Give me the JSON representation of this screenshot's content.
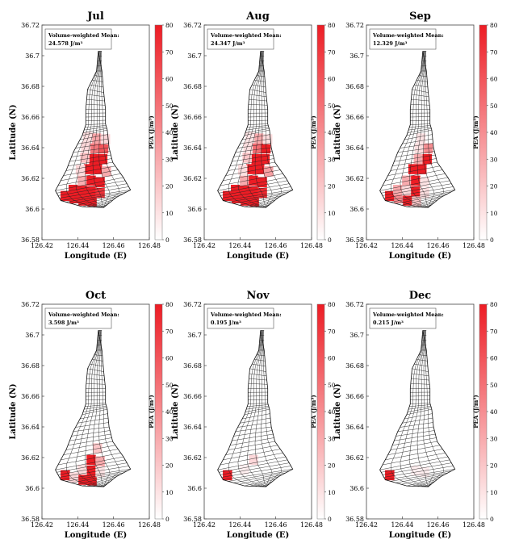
{
  "chart_data": [
    {
      "type": "heatmap",
      "title": "Jul",
      "mean_label": "Volume-weighted Mean:",
      "mean_value": "24.578 J/m³",
      "xlabel": "Longitude (E)",
      "ylabel": "Latitude (N)",
      "colorbar_label": "PEA (J/m³)",
      "xlim": [
        126.42,
        126.48
      ],
      "ylim": [
        36.58,
        36.72
      ],
      "clim": [
        0,
        80
      ],
      "xticks": [
        "126.42",
        "126.44",
        "126.46",
        "126.48"
      ],
      "yticks": [
        "36.58",
        "36.6",
        "36.62",
        "36.64",
        "36.66",
        "36.68",
        "36.7",
        "36.72"
      ],
      "cbar_ticks": [
        "0",
        "10",
        "20",
        "30",
        "40",
        "50",
        "60",
        "70",
        "80"
      ],
      "cells": [
        {
          "lon": 126.433,
          "lat": 36.6085,
          "v": 80
        },
        {
          "lon": 126.438,
          "lat": 36.607,
          "v": 80
        },
        {
          "lon": 126.443,
          "lat": 36.6055,
          "v": 80
        },
        {
          "lon": 126.448,
          "lat": 36.605,
          "v": 80
        },
        {
          "lon": 126.4375,
          "lat": 36.6125,
          "v": 80
        },
        {
          "lon": 126.4425,
          "lat": 36.612,
          "v": 80
        },
        {
          "lon": 126.4475,
          "lat": 36.6115,
          "v": 80
        },
        {
          "lon": 126.4525,
          "lat": 36.6105,
          "v": 72
        },
        {
          "lon": 126.4425,
          "lat": 36.6185,
          "v": 28
        },
        {
          "lon": 126.4475,
          "lat": 36.6185,
          "v": 80
        },
        {
          "lon": 126.4525,
          "lat": 36.6175,
          "v": 80
        },
        {
          "lon": 126.446,
          "lat": 36.626,
          "v": 80
        },
        {
          "lon": 126.451,
          "lat": 36.626,
          "v": 80
        },
        {
          "lon": 126.456,
          "lat": 36.6245,
          "v": 30
        },
        {
          "lon": 126.449,
          "lat": 36.6325,
          "v": 80
        },
        {
          "lon": 126.454,
          "lat": 36.6325,
          "v": 80
        },
        {
          "lon": 126.444,
          "lat": 36.6335,
          "v": 22
        },
        {
          "lon": 126.4495,
          "lat": 36.6395,
          "v": 48
        },
        {
          "lon": 126.4545,
          "lat": 36.6395,
          "v": 60
        },
        {
          "lon": 126.4445,
          "lat": 36.6405,
          "v": 14
        },
        {
          "lon": 126.4505,
          "lat": 36.646,
          "v": 32
        },
        {
          "lon": 126.4555,
          "lat": 36.6455,
          "v": 14
        },
        {
          "lon": 126.4455,
          "lat": 36.647,
          "v": 12
        },
        {
          "lon": 126.4415,
          "lat": 36.6255,
          "v": 14
        }
      ]
    },
    {
      "type": "heatmap",
      "title": "Aug",
      "mean_label": "Volume-weighted Mean:",
      "mean_value": "24.347 J/m³",
      "xlabel": "Longitude (E)",
      "ylabel": "Latitude (N)",
      "colorbar_label": "PEA (J/m³)",
      "xlim": [
        126.42,
        126.48
      ],
      "ylim": [
        36.58,
        36.72
      ],
      "clim": [
        0,
        80
      ],
      "xticks": [
        "126.42",
        "126.44",
        "126.46",
        "126.48"
      ],
      "yticks": [
        "36.58",
        "36.6",
        "36.62",
        "36.64",
        "36.66",
        "36.68",
        "36.7",
        "36.72"
      ],
      "cbar_ticks": [
        "0",
        "10",
        "20",
        "30",
        "40",
        "50",
        "60",
        "70",
        "80"
      ],
      "cells": [
        {
          "lon": 126.433,
          "lat": 36.6085,
          "v": 80
        },
        {
          "lon": 126.438,
          "lat": 36.607,
          "v": 80
        },
        {
          "lon": 126.443,
          "lat": 36.6055,
          "v": 80
        },
        {
          "lon": 126.448,
          "lat": 36.605,
          "v": 80
        },
        {
          "lon": 126.4375,
          "lat": 36.6125,
          "v": 80
        },
        {
          "lon": 126.4425,
          "lat": 36.612,
          "v": 80
        },
        {
          "lon": 126.4475,
          "lat": 36.6115,
          "v": 80
        },
        {
          "lon": 126.4525,
          "lat": 36.6105,
          "v": 76
        },
        {
          "lon": 126.4425,
          "lat": 36.6185,
          "v": 30
        },
        {
          "lon": 126.4475,
          "lat": 36.6185,
          "v": 80
        },
        {
          "lon": 126.4525,
          "lat": 36.6175,
          "v": 80
        },
        {
          "lon": 126.446,
          "lat": 36.626,
          "v": 80
        },
        {
          "lon": 126.451,
          "lat": 36.626,
          "v": 80
        },
        {
          "lon": 126.456,
          "lat": 36.6245,
          "v": 34
        },
        {
          "lon": 126.449,
          "lat": 36.6325,
          "v": 80
        },
        {
          "lon": 126.454,
          "lat": 36.6325,
          "v": 80
        },
        {
          "lon": 126.444,
          "lat": 36.6335,
          "v": 20
        },
        {
          "lon": 126.4495,
          "lat": 36.6395,
          "v": 52
        },
        {
          "lon": 126.4545,
          "lat": 36.6395,
          "v": 80
        },
        {
          "lon": 126.4445,
          "lat": 36.6405,
          "v": 12
        },
        {
          "lon": 126.4505,
          "lat": 36.646,
          "v": 30
        },
        {
          "lon": 126.4555,
          "lat": 36.6455,
          "v": 12
        },
        {
          "lon": 126.4455,
          "lat": 36.647,
          "v": 10
        },
        {
          "lon": 126.4415,
          "lat": 36.6255,
          "v": 12
        }
      ]
    },
    {
      "type": "heatmap",
      "title": "Sep",
      "mean_label": "Volume-weighted Mean:",
      "mean_value": "12.329 J/m³",
      "xlabel": "Longitude (E)",
      "ylabel": "Latitude (N)",
      "colorbar_label": "PEA (J/m³)",
      "xlim": [
        126.42,
        126.48
      ],
      "ylim": [
        36.58,
        36.72
      ],
      "clim": [
        0,
        80
      ],
      "xticks": [
        "126.42",
        "126.44",
        "126.46",
        "126.48"
      ],
      "yticks": [
        "36.58",
        "36.6",
        "36.62",
        "36.64",
        "36.66",
        "36.68",
        "36.7",
        "36.72"
      ],
      "cbar_ticks": [
        "0",
        "10",
        "20",
        "30",
        "40",
        "50",
        "60",
        "70",
        "80"
      ],
      "cells": [
        {
          "lon": 126.433,
          "lat": 36.6085,
          "v": 80
        },
        {
          "lon": 126.438,
          "lat": 36.607,
          "v": 40
        },
        {
          "lon": 126.443,
          "lat": 36.6055,
          "v": 80
        },
        {
          "lon": 126.448,
          "lat": 36.605,
          "v": 20
        },
        {
          "lon": 126.4375,
          "lat": 36.6125,
          "v": 30
        },
        {
          "lon": 126.4425,
          "lat": 36.612,
          "v": 14
        },
        {
          "lon": 126.4475,
          "lat": 36.6115,
          "v": 80
        },
        {
          "lon": 126.4525,
          "lat": 36.6105,
          "v": 12
        },
        {
          "lon": 126.4425,
          "lat": 36.6185,
          "v": 30
        },
        {
          "lon": 126.4475,
          "lat": 36.6185,
          "v": 80
        },
        {
          "lon": 126.4525,
          "lat": 36.6175,
          "v": 10
        },
        {
          "lon": 126.446,
          "lat": 36.626,
          "v": 80
        },
        {
          "lon": 126.451,
          "lat": 36.626,
          "v": 80
        },
        {
          "lon": 126.449,
          "lat": 36.6325,
          "v": 30
        },
        {
          "lon": 126.454,
          "lat": 36.6325,
          "v": 80
        },
        {
          "lon": 126.4545,
          "lat": 36.6395,
          "v": 40
        },
        {
          "lon": 126.4495,
          "lat": 36.6395,
          "v": 12
        },
        {
          "lon": 126.4505,
          "lat": 36.646,
          "v": 10
        }
      ]
    },
    {
      "type": "heatmap",
      "title": "Oct",
      "mean_label": "Volume-weighted Mean:",
      "mean_value": "3.598 J/m³",
      "xlabel": "Longitude (E)",
      "ylabel": "Latitude (N)",
      "colorbar_label": "PEA (J/m³)",
      "xlim": [
        126.42,
        126.48
      ],
      "ylim": [
        36.58,
        36.72
      ],
      "clim": [
        0,
        80
      ],
      "xticks": [
        "126.42",
        "126.44",
        "126.46",
        "126.48"
      ],
      "yticks": [
        "36.58",
        "36.6",
        "36.62",
        "36.64",
        "36.66",
        "36.68",
        "36.7",
        "36.72"
      ],
      "cbar_ticks": [
        "0",
        "10",
        "20",
        "30",
        "40",
        "50",
        "60",
        "70",
        "80"
      ],
      "cells": [
        {
          "lon": 126.433,
          "lat": 36.6085,
          "v": 80
        },
        {
          "lon": 126.438,
          "lat": 36.607,
          "v": 14
        },
        {
          "lon": 126.443,
          "lat": 36.6055,
          "v": 80
        },
        {
          "lon": 126.448,
          "lat": 36.605,
          "v": 80
        },
        {
          "lon": 126.4475,
          "lat": 36.6115,
          "v": 80
        },
        {
          "lon": 126.4425,
          "lat": 36.612,
          "v": 12
        },
        {
          "lon": 126.4475,
          "lat": 36.6185,
          "v": 80
        },
        {
          "lon": 126.4525,
          "lat": 36.6175,
          "v": 30
        },
        {
          "lon": 126.451,
          "lat": 36.626,
          "v": 20
        },
        {
          "lon": 126.4525,
          "lat": 36.6105,
          "v": 10
        }
      ]
    },
    {
      "type": "heatmap",
      "title": "Nov",
      "mean_label": "Volume-weighted Mean:",
      "mean_value": "0.195 J/m³",
      "xlabel": "Longitude (E)",
      "ylabel": "Latitude (N)",
      "colorbar_label": "PEA (J/m³)",
      "xlim": [
        126.42,
        126.48
      ],
      "ylim": [
        36.58,
        36.72
      ],
      "clim": [
        0,
        80
      ],
      "xticks": [
        "126.42",
        "126.44",
        "126.46",
        "126.48"
      ],
      "yticks": [
        "36.58",
        "36.6",
        "36.62",
        "36.64",
        "36.66",
        "36.68",
        "36.7",
        "36.72"
      ],
      "cbar_ticks": [
        "0",
        "10",
        "20",
        "30",
        "40",
        "50",
        "60",
        "70",
        "80"
      ],
      "cells": [
        {
          "lon": 126.433,
          "lat": 36.6085,
          "v": 80
        },
        {
          "lon": 126.4475,
          "lat": 36.6185,
          "v": 14
        },
        {
          "lon": 126.4425,
          "lat": 36.612,
          "v": 6
        }
      ]
    },
    {
      "type": "heatmap",
      "title": "Dec",
      "mean_label": "Volume-weighted Mean:",
      "mean_value": "0.215 J/m³",
      "xlabel": "Longitude (E)",
      "ylabel": "Latitude (N)",
      "colorbar_label": "PEA (J/m³)",
      "xlim": [
        126.42,
        126.48
      ],
      "ylim": [
        36.58,
        36.72
      ],
      "clim": [
        0,
        80
      ],
      "xticks": [
        "126.42",
        "126.44",
        "126.46",
        "126.48"
      ],
      "yticks": [
        "36.58",
        "36.6",
        "36.62",
        "36.64",
        "36.66",
        "36.68",
        "36.7",
        "36.72"
      ],
      "cbar_ticks": [
        "0",
        "10",
        "20",
        "30",
        "40",
        "50",
        "60",
        "70",
        "80"
      ],
      "cells": [
        {
          "lon": 126.433,
          "lat": 36.6085,
          "v": 80
        },
        {
          "lon": 126.4475,
          "lat": 36.6115,
          "v": 6
        },
        {
          "lon": 126.4525,
          "lat": 36.6105,
          "v": 6
        }
      ]
    }
  ],
  "colors": {
    "high": "#ed1c24",
    "low": "#ffffff",
    "grid": "#222222"
  }
}
